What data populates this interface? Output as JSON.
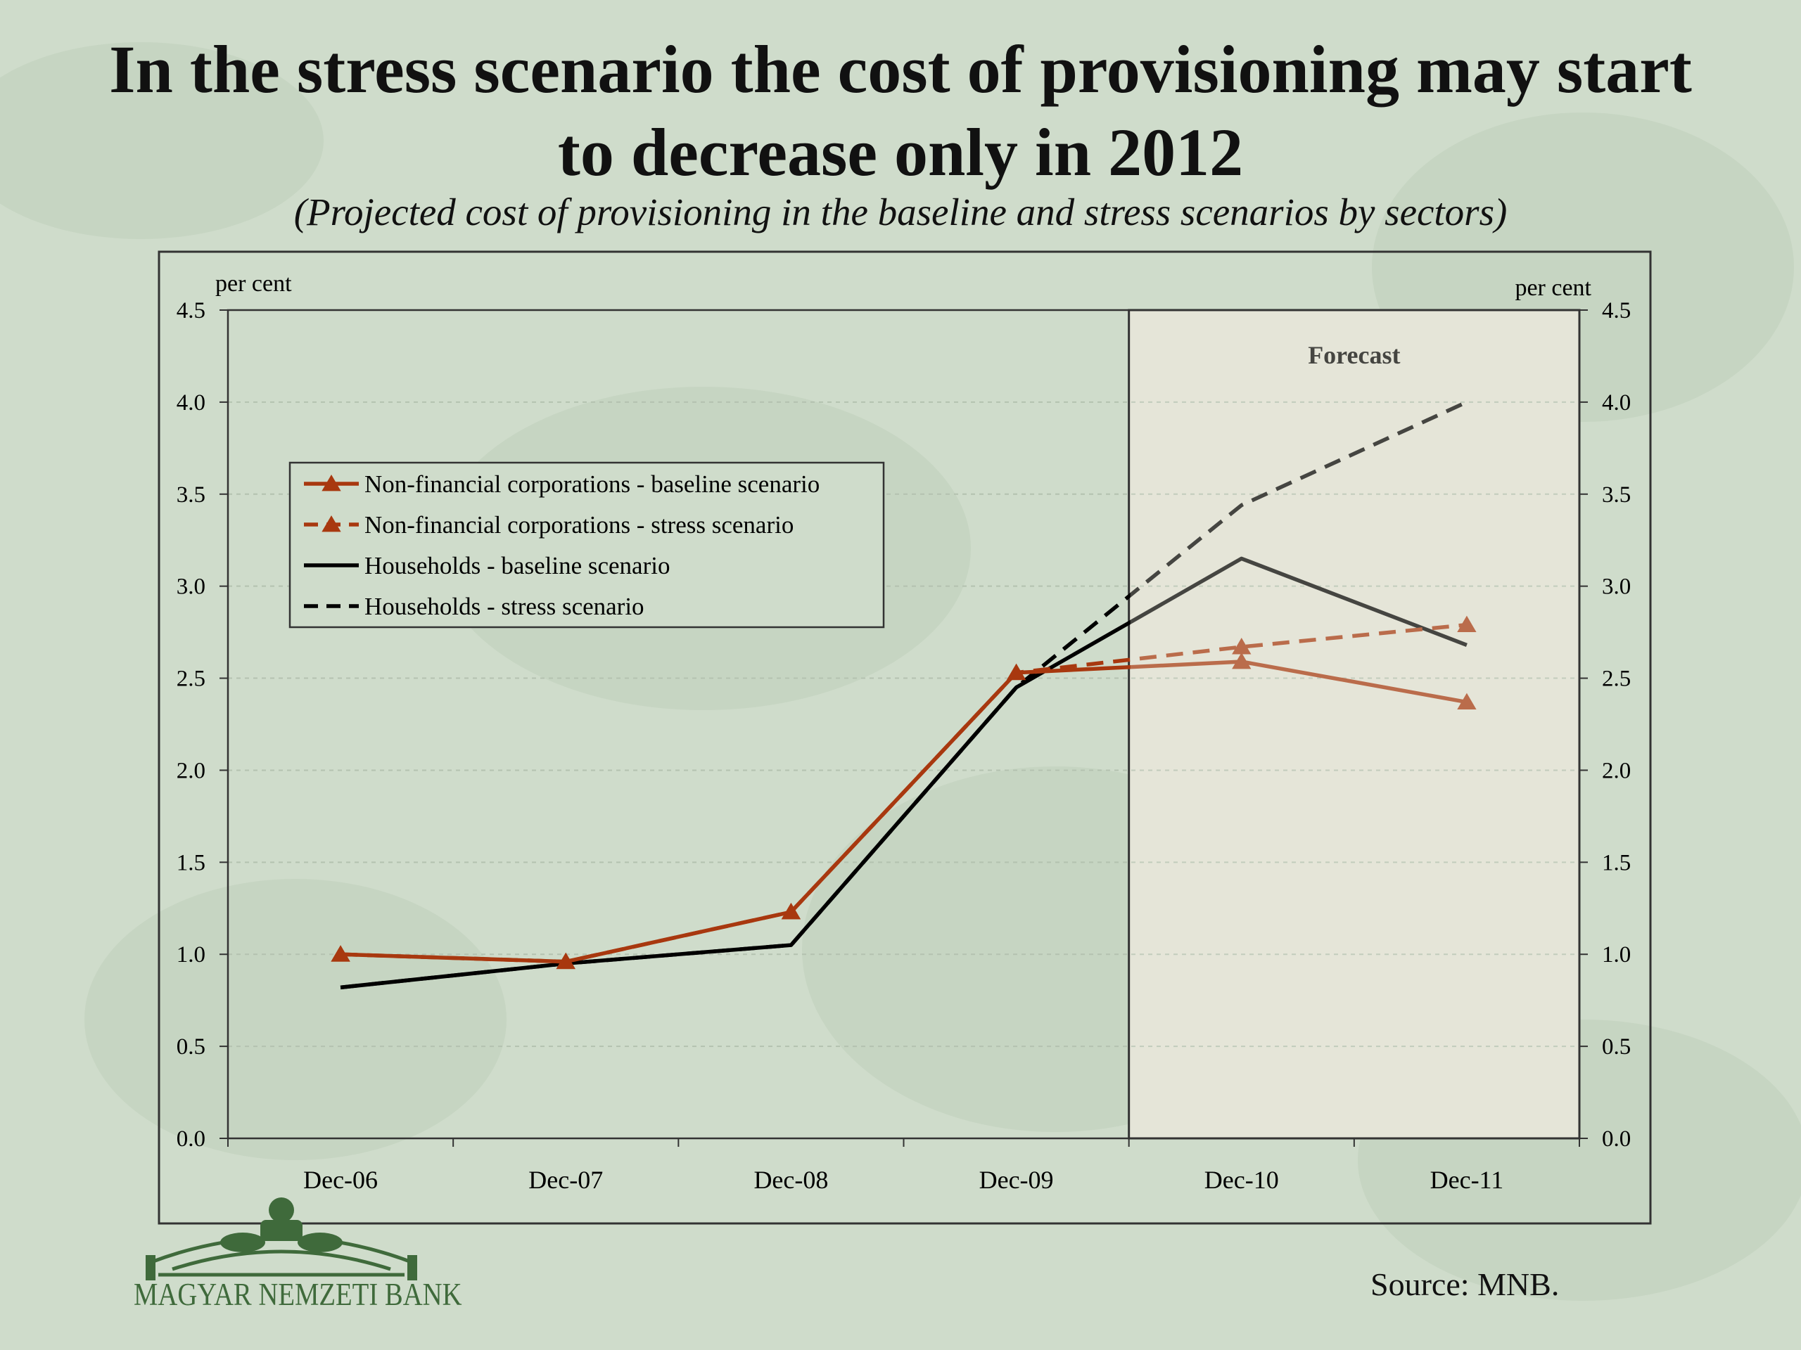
{
  "title_line1": "In the stress scenario the cost of provisioning may start",
  "title_line2": "to decrease only in 2012",
  "subtitle": "(Projected cost of  provisioning in the baseline and stress scenarios by sectors)",
  "source": "Source: MNB.",
  "logo_text": "MAGYAR NEMZETI BANK",
  "colors": {
    "background": "#cfdccb",
    "corporations": "#a8380f",
    "households": "#000000",
    "forecast_shade": "#e6e6d8"
  },
  "chart_data": {
    "type": "line",
    "categories": [
      "Dec-06",
      "Dec-07",
      "Dec-08",
      "Dec-09",
      "Dec-10",
      "Dec-11"
    ],
    "ylim": [
      0,
      4.5
    ],
    "yticks": [
      "0.0",
      "0.5",
      "1.0",
      "1.5",
      "2.0",
      "2.5",
      "3.0",
      "3.5",
      "4.0",
      "4.5"
    ],
    "ylabel_left": "per cent",
    "ylabel_right": "per cent",
    "forecast_label": "Forecast",
    "forecast_start_category": "Dec-10",
    "grid": true,
    "legend_position": "upper-left",
    "series": [
      {
        "name": "Non-financial corporations - baseline scenario",
        "values": [
          1.0,
          0.96,
          1.23,
          2.53,
          2.59,
          2.37
        ],
        "style": "solid",
        "marker": "triangle"
      },
      {
        "name": "Non-financial corporations - stress scenario",
        "values": [
          1.0,
          0.96,
          1.23,
          2.53,
          2.67,
          2.79
        ],
        "style": "dashed",
        "marker": "triangle"
      },
      {
        "name": "Households - baseline scenario",
        "values": [
          0.82,
          0.95,
          1.05,
          2.45,
          3.15,
          2.68
        ],
        "style": "solid",
        "marker": "none"
      },
      {
        "name": "Households - stress scenario",
        "values": [
          0.82,
          0.95,
          1.05,
          2.45,
          3.44,
          4.0
        ],
        "style": "dashed",
        "marker": "none"
      }
    ]
  }
}
